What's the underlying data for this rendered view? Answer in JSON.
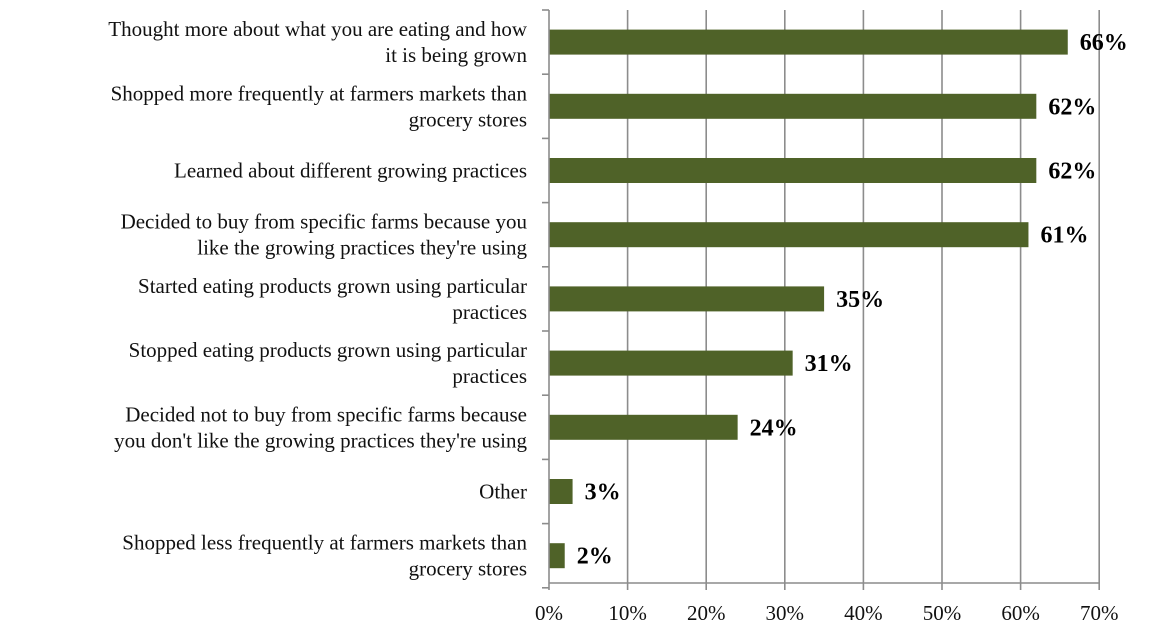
{
  "chart_data": {
    "type": "bar",
    "orientation": "horizontal",
    "title": "",
    "xlabel": "",
    "ylabel": "",
    "xlim": [
      0,
      70
    ],
    "x_ticks": [
      "0%",
      "10%",
      "20%",
      "30%",
      "40%",
      "50%",
      "60%",
      "70%"
    ],
    "grid": true,
    "bar_color": "#4f6228",
    "categories": [
      [
        "Thought more about what you are eating and how",
        "it is being grown"
      ],
      [
        "Shopped more frequently at farmers markets than",
        "grocery stores"
      ],
      [
        "Learned about different growing practices"
      ],
      [
        "Decided to buy from specific farms because you",
        "like the growing practices they're using"
      ],
      [
        "Started eating products grown using particular",
        "practices"
      ],
      [
        "Stopped eating products grown using particular",
        "practices"
      ],
      [
        "Decided not to buy from specific farms because",
        "you don't like the growing practices they're using"
      ],
      [
        "Other"
      ],
      [
        "Shopped less frequently at farmers markets than",
        "grocery stores"
      ]
    ],
    "values": [
      66,
      62,
      62,
      61,
      35,
      31,
      24,
      3,
      2
    ],
    "data_labels": [
      "66%",
      "62%",
      "62%",
      "61%",
      "35%",
      "31%",
      "24%",
      "3%",
      "2%"
    ]
  }
}
